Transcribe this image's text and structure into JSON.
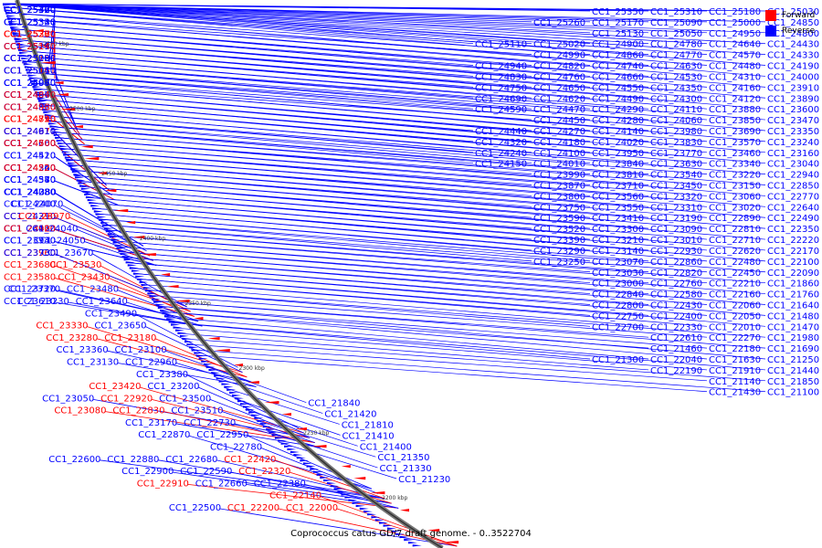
{
  "caption": "Coprococcus catus GD/7 draft genome. - 0..3522704",
  "legend": [
    {
      "label": "Forward",
      "color": "#ff0000"
    },
    {
      "label": "Reverse",
      "color": "#0000ff"
    }
  ],
  "colors": {
    "forward": "#ff0000",
    "reverse": "#0000ff",
    "backbone": "#555555"
  },
  "ticks": [
    "2550 kbp",
    "2500 kbp",
    "2450 kbp",
    "2400 kbp",
    "2350 kbp",
    "2300 kbp",
    "2250 kbp",
    "2200 kbp"
  ],
  "left_labels": [
    {
      "t": "CC1_25420",
      "s": "r"
    },
    {
      "t": "CC1_25400",
      "s": "r"
    },
    {
      "t": "CC1_25370",
      "s": "r"
    },
    {
      "t": "CC1_25360",
      "s": "r"
    },
    {
      "t": "CC1_25330",
      "s": "r"
    },
    {
      "t": "CC1_25320",
      "s": "r"
    },
    {
      "t": "CC1_25340",
      "s": "r"
    },
    {
      "t": "CC1_25300",
      "s": "f"
    },
    {
      "t": "CC1_25280",
      "s": "f"
    },
    {
      "t": "CC1_25270",
      "s": "f"
    },
    {
      "t": "CC1_25190",
      "s": "r"
    },
    {
      "t": "CC1_25210",
      "s": "r"
    },
    {
      "t": "CC1_25140",
      "s": "f"
    },
    {
      "t": "CC1_25220",
      "s": "r"
    },
    {
      "t": "CC1_25150",
      "s": "f"
    },
    {
      "t": "CC1_25080",
      "s": "r"
    },
    {
      "t": "CC1_25200",
      "s": "r"
    },
    {
      "t": "CC1_25160",
      "s": "f"
    },
    {
      "t": "CC1_25010",
      "s": "r"
    },
    {
      "t": "CC1_25040",
      "s": "r"
    },
    {
      "t": "CC1_25060",
      "s": "r"
    },
    {
      "t": "CC1_24930",
      "s": "r"
    },
    {
      "t": "CC1_25070",
      "s": "r"
    },
    {
      "t": "CC1_24960",
      "s": "r"
    },
    {
      "t": "CC1_24870",
      "s": "r"
    },
    {
      "t": "CC1_24840",
      "s": "f"
    },
    {
      "t": "CC1_24970",
      "s": "r"
    },
    {
      "t": "CC1_24880",
      "s": "r"
    },
    {
      "t": "CC1_24980",
      "s": "f"
    },
    {
      "t": "CC1_24890",
      "s": "f"
    },
    {
      "t": "CC1_24720",
      "s": "f"
    },
    {
      "t": "CC1_24710",
      "s": "f"
    },
    {
      "t": "CC1_24910",
      "s": "r"
    },
    {
      "t": "CC1_24670",
      "s": "f"
    },
    {
      "t": "CC1_24610",
      "s": "r"
    },
    {
      "t": "CC1_24700",
      "s": "f"
    },
    {
      "t": "CC1_24560",
      "s": "r"
    },
    {
      "t": "CC1_24600",
      "s": "r"
    },
    {
      "t": "CC1_24500",
      "s": "f"
    },
    {
      "t": "CC1_24420",
      "s": "r"
    },
    {
      "t": "CC1_24510",
      "s": "r"
    },
    {
      "t": "CC1_24340",
      "s": "r"
    },
    {
      "t": "CC1_24520",
      "s": "f"
    },
    {
      "t": "CC1_24360",
      "s": "r"
    },
    {
      "t": "CC1_24220",
      "s": "f"
    },
    {
      "t": "CC1_24580",
      "s": "r"
    },
    {
      "t": "CC1_24540",
      "s": "r"
    },
    {
      "t": "CC1_24370",
      "s": "r"
    },
    {
      "t": "CC1_24230",
      "s": "r"
    },
    {
      "t": "CC1_24080",
      "s": "r"
    },
    {
      "t": "CC1_24380",
      "s": "r"
    },
    {
      "t": "CC1_24200",
      "s": "r"
    },
    {
      "t": "CC1_24070",
      "s": "r"
    },
    {
      "t": "CC1_24390",
      "s": "f"
    },
    {
      "t": "CC1_24210",
      "s": "r"
    },
    {
      "t": "CC1_23970",
      "s": "f"
    },
    {
      "t": "CC1_24400",
      "s": "f"
    },
    {
      "t": "CC1_24030",
      "s": "r"
    },
    {
      "t": "CC1_24410",
      "s": "r"
    },
    {
      "t": "CC1_23920",
      "s": "f"
    },
    {
      "t": "CC1_24040",
      "s": "r"
    },
    {
      "t": "CC1_23930",
      "s": "r"
    },
    {
      "t": "CC1_23740",
      "s": "r"
    },
    {
      "t": "CC1_24050",
      "s": "r"
    },
    {
      "t": "CC1_23960",
      "s": "f"
    },
    {
      "t": "CC1_23730",
      "s": "r"
    },
    {
      "t": "CC1_23670",
      "s": "r"
    },
    {
      "t": "CC1_23680",
      "s": "f"
    },
    {
      "t": "CC1_23530",
      "s": "f"
    },
    {
      "t": "CC1_23580",
      "s": "f"
    },
    {
      "t": "CC1_23430",
      "s": "f"
    },
    {
      "t": "CC1_23720",
      "s": "r"
    },
    {
      "t": "CC1_23370",
      "s": "r"
    },
    {
      "t": "CC1_23480",
      "s": "r"
    },
    {
      "t": "CC1_23610",
      "s": "r"
    },
    {
      "t": "CC1_23230",
      "s": "r"
    },
    {
      "t": "CC1_23640",
      "s": "r"
    },
    {
      "t": "CC1_23490",
      "s": "r"
    },
    {
      "t": "CC1_23330",
      "s": "f"
    },
    {
      "t": "CC1_23650",
      "s": "r"
    },
    {
      "t": "CC1_23280",
      "s": "f"
    },
    {
      "t": "CC1_23180",
      "s": "f"
    },
    {
      "t": "CC1_23360",
      "s": "r"
    },
    {
      "t": "CC1_23100",
      "s": "r"
    },
    {
      "t": "CC1_23130",
      "s": "r"
    },
    {
      "t": "CC1_22960",
      "s": "r"
    },
    {
      "t": "CC1_23380",
      "s": "r"
    },
    {
      "t": "CC1_23420",
      "s": "f"
    },
    {
      "t": "CC1_23200",
      "s": "r"
    },
    {
      "t": "CC1_23050",
      "s": "r"
    },
    {
      "t": "CC1_22920",
      "s": "f"
    },
    {
      "t": "CC1_23500",
      "s": "r"
    },
    {
      "t": "CC1_23080",
      "s": "f"
    },
    {
      "t": "CC1_22830",
      "s": "f"
    },
    {
      "t": "CC1_23510",
      "s": "r"
    },
    {
      "t": "CC1_23170",
      "s": "r"
    },
    {
      "t": "CC1_22730",
      "s": "r"
    },
    {
      "t": "CC1_22870",
      "s": "r"
    },
    {
      "t": "CC1_22950",
      "s": "r"
    },
    {
      "t": "CC1_22780",
      "s": "r"
    },
    {
      "t": "CC1_22600",
      "s": "r"
    },
    {
      "t": "CC1_22880",
      "s": "r"
    },
    {
      "t": "CC1_22680",
      "s": "r"
    },
    {
      "t": "CC1_22420",
      "s": "f"
    },
    {
      "t": "CC1_22900",
      "s": "r"
    },
    {
      "t": "CC1_22590",
      "s": "r"
    },
    {
      "t": "CC1_22320",
      "s": "f"
    },
    {
      "t": "CC1_22910",
      "s": "f"
    },
    {
      "t": "CC1_22660",
      "s": "r"
    },
    {
      "t": "CC1_22380",
      "s": "r"
    },
    {
      "t": "CC1_22140",
      "s": "f"
    },
    {
      "t": "CC1_22500",
      "s": "r"
    },
    {
      "t": "CC1_22200",
      "s": "f"
    },
    {
      "t": "CC1_22000",
      "s": "f"
    }
  ],
  "right_labels": [
    "CC1_25350",
    "CC1_25310",
    "CC1_25180",
    "CC1_25030",
    "CC1_25260",
    "CC1_25170",
    "CC1_25090",
    "CC1_25000",
    "CC1_24850",
    "CC1_25130",
    "CC1_25050",
    "CC1_24950",
    "CC1_24800",
    "CC1_25110",
    "CC1_25020",
    "CC1_24900",
    "CC1_24780",
    "CC1_24640",
    "CC1_24430",
    "CC1_24990",
    "CC1_24860",
    "CC1_24770",
    "CC1_24570",
    "CC1_24330",
    "CC1_24940",
    "CC1_24820",
    "CC1_24740",
    "CC1_24630",
    "CC1_24480",
    "CC1_24190",
    "CC1_24830",
    "CC1_24760",
    "CC1_24660",
    "CC1_24530",
    "CC1_24310",
    "CC1_24000",
    "CC1_24750",
    "CC1_24650",
    "CC1_24550",
    "CC1_24350",
    "CC1_24160",
    "CC1_23910",
    "CC1_24690",
    "CC1_24620",
    "CC1_24490",
    "CC1_24300",
    "CC1_24120",
    "CC1_23890",
    "CC1_24590",
    "CC1_24470",
    "CC1_24290",
    "CC1_24110",
    "CC1_23880",
    "CC1_23600",
    "CC1_24450",
    "CC1_24280",
    "CC1_24060",
    "CC1_23850",
    "CC1_23470",
    "CC1_24440",
    "CC1_24270",
    "CC1_24140",
    "CC1_23980",
    "CC1_23690",
    "CC1_23350",
    "CC1_24320",
    "CC1_24180",
    "CC1_24020",
    "CC1_23830",
    "CC1_23570",
    "CC1_23240",
    "CC1_24240",
    "CC1_24100",
    "CC1_23950",
    "CC1_23770",
    "CC1_23460",
    "CC1_23160",
    "CC1_24150",
    "CC1_24010",
    "CC1_23840",
    "CC1_23630",
    "CC1_23340",
    "CC1_23040",
    "CC1_23990",
    "CC1_23810",
    "CC1_23540",
    "CC1_23220",
    "CC1_22940",
    "CC1_23870",
    "CC1_23710",
    "CC1_23450",
    "CC1_23150",
    "CC1_22850",
    "CC1_23800",
    "CC1_23560",
    "CC1_23320",
    "CC1_23060",
    "CC1_22770",
    "CC1_23750",
    "CC1_23550",
    "CC1_23310",
    "CC1_23020",
    "CC1_22640",
    "CC1_23590",
    "CC1_23410",
    "CC1_23190",
    "CC1_22890",
    "CC1_22490",
    "CC1_23520",
    "CC1_23300",
    "CC1_23090",
    "CC1_22810",
    "CC1_22350",
    "CC1_23390",
    "CC1_23210",
    "CC1_23010",
    "CC1_22710",
    "CC1_22220",
    "CC1_23290",
    "CC1_23140",
    "CC1_22930",
    "CC1_22620",
    "CC1_22170",
    "CC1_23250",
    "CC1_23070",
    "CC1_22860",
    "CC1_22480",
    "CC1_22100",
    "CC1_23030",
    "CC1_22820",
    "CC1_22450",
    "CC1_22090",
    "CC1_23000",
    "CC1_22760",
    "CC1_22210",
    "CC1_21860",
    "CC1_22840",
    "CC1_22580",
    "CC1_22160",
    "CC1_21760",
    "CC1_22800",
    "CC1_22430",
    "CC1_22060",
    "CC1_21640",
    "CC1_22750",
    "CC1_22400",
    "CC1_22050",
    "CC1_21480",
    "CC1_22700",
    "CC1_22330",
    "CC1_22010",
    "CC1_21470",
    "CC1_22610",
    "CC1_22270",
    "CC1_21980",
    "CC1_21460",
    "CC1_22180",
    "CC1_21690",
    "CC1_21300",
    "CC1_22040",
    "CC1_21630",
    "CC1_21250",
    "CC1_22190",
    "CC1_21910",
    "CC1_21440",
    "CC1_21140",
    "CC1_21850",
    "CC1_21430",
    "CC1_21100",
    "CC1_21840",
    "CC1_21420",
    "CC1_21810",
    "CC1_21410",
    "CC1_21400",
    "CC1_21350",
    "CC1_21330",
    "CC1_21230"
  ]
}
